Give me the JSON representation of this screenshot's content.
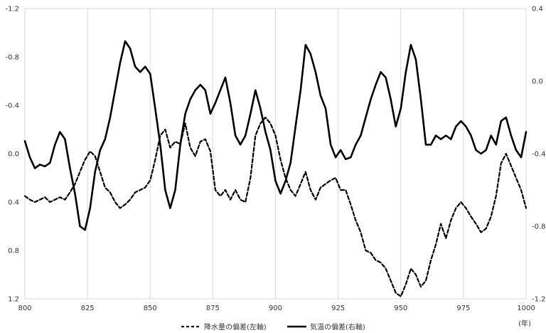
{
  "chart_data": {
    "type": "line",
    "x_unit_label": "(年)",
    "xlim": [
      800,
      1000
    ],
    "x_ticks": [
      "800",
      "825",
      "850",
      "875",
      "900",
      "925",
      "950",
      "975",
      "1000"
    ],
    "y_left": {
      "inverted": true,
      "ylim": [
        -1.2,
        1.2
      ],
      "ticks": [
        "-1.2",
        "-0.8",
        "-0.4",
        "0.0",
        "0.4",
        "0.8",
        "1.2"
      ]
    },
    "y_right": {
      "ylim": [
        -1.2,
        0.4
      ],
      "ticks": [
        "0.4",
        "0.0",
        "-0.4",
        "-0.8",
        "-1.2"
      ]
    },
    "grid": "vertical",
    "legend_position": "bottom",
    "series": [
      {
        "name": "降水量の偏差(左軸)",
        "axis": "left",
        "style": "dashed",
        "color": "#000000",
        "x": [
          800,
          802,
          804,
          806,
          808,
          810,
          812,
          814,
          816,
          818,
          820,
          822,
          824,
          826,
          828,
          830,
          832,
          834,
          836,
          838,
          840,
          842,
          844,
          846,
          848,
          850,
          852,
          854,
          856,
          858,
          860,
          862,
          864,
          866,
          868,
          870,
          872,
          874,
          876,
          878,
          880,
          882,
          884,
          886,
          888,
          890,
          892,
          894,
          896,
          898,
          900,
          902,
          904,
          906,
          908,
          910,
          912,
          914,
          916,
          918,
          920,
          922,
          924,
          926,
          928,
          930,
          932,
          934,
          936,
          938,
          940,
          942,
          944,
          946,
          948,
          950,
          952,
          954,
          956,
          958,
          960,
          962,
          964,
          966,
          968,
          970,
          972,
          974,
          976,
          978,
          980,
          982,
          984,
          986,
          988,
          990,
          992,
          994,
          996,
          998,
          1000
        ],
        "values": [
          0.35,
          0.38,
          0.4,
          0.38,
          0.36,
          0.4,
          0.38,
          0.36,
          0.38,
          0.32,
          0.25,
          0.15,
          0.05,
          -0.02,
          0.02,
          0.15,
          0.28,
          0.32,
          0.4,
          0.45,
          0.42,
          0.38,
          0.32,
          0.3,
          0.28,
          0.22,
          0.05,
          -0.15,
          -0.2,
          -0.05,
          -0.1,
          -0.08,
          -0.25,
          -0.05,
          0.02,
          -0.1,
          -0.12,
          -0.02,
          0.3,
          0.35,
          0.3,
          0.38,
          0.3,
          0.38,
          0.4,
          0.2,
          -0.15,
          -0.25,
          -0.3,
          -0.25,
          -0.15,
          0.05,
          0.2,
          0.3,
          0.35,
          0.25,
          0.15,
          0.3,
          0.38,
          0.28,
          0.25,
          0.22,
          0.2,
          0.3,
          0.3,
          0.42,
          0.55,
          0.65,
          0.8,
          0.82,
          0.88,
          0.9,
          0.95,
          1.05,
          1.15,
          1.18,
          1.08,
          0.95,
          1.0,
          1.1,
          1.05,
          0.88,
          0.75,
          0.58,
          0.7,
          0.55,
          0.45,
          0.4,
          0.45,
          0.52,
          0.58,
          0.65,
          0.62,
          0.52,
          0.35,
          0.08,
          0.0,
          0.1,
          0.2,
          0.3,
          0.45
        ]
      },
      {
        "name": "気温の偏差(右軸)",
        "axis": "right",
        "style": "solid",
        "color": "#000000",
        "x": [
          800,
          802,
          804,
          806,
          808,
          810,
          812,
          814,
          816,
          818,
          820,
          822,
          824,
          826,
          828,
          830,
          832,
          834,
          836,
          838,
          840,
          842,
          844,
          846,
          848,
          850,
          852,
          854,
          856,
          858,
          860,
          862,
          864,
          866,
          868,
          870,
          872,
          874,
          876,
          878,
          880,
          882,
          884,
          886,
          888,
          890,
          892,
          894,
          896,
          898,
          900,
          902,
          904,
          906,
          908,
          910,
          912,
          914,
          916,
          918,
          920,
          922,
          924,
          926,
          928,
          930,
          932,
          934,
          936,
          938,
          940,
          942,
          944,
          946,
          948,
          950,
          952,
          954,
          956,
          958,
          960,
          962,
          964,
          966,
          968,
          970,
          972,
          974,
          976,
          978,
          980,
          982,
          984,
          986,
          988,
          990,
          992,
          994,
          996,
          998,
          1000
        ],
        "values": [
          -0.33,
          -0.42,
          -0.48,
          -0.46,
          -0.47,
          -0.45,
          -0.35,
          -0.28,
          -0.32,
          -0.48,
          -0.62,
          -0.8,
          -0.82,
          -0.7,
          -0.5,
          -0.38,
          -0.32,
          -0.2,
          -0.05,
          0.1,
          0.22,
          0.18,
          0.08,
          0.05,
          0.08,
          0.04,
          -0.15,
          -0.35,
          -0.6,
          -0.7,
          -0.6,
          -0.35,
          -0.18,
          -0.1,
          -0.05,
          -0.02,
          -0.05,
          -0.18,
          -0.12,
          -0.05,
          0.02,
          -0.12,
          -0.3,
          -0.35,
          -0.3,
          -0.18,
          -0.05,
          -0.15,
          -0.28,
          -0.38,
          -0.55,
          -0.62,
          -0.55,
          -0.45,
          -0.25,
          -0.05,
          0.2,
          0.15,
          0.05,
          -0.08,
          -0.15,
          -0.35,
          -0.42,
          -0.38,
          -0.43,
          -0.42,
          -0.35,
          -0.3,
          -0.2,
          -0.1,
          -0.02,
          0.05,
          0.02,
          -0.1,
          -0.25,
          -0.15,
          0.05,
          0.2,
          0.12,
          -0.1,
          -0.35,
          -0.35,
          -0.3,
          -0.32,
          -0.3,
          -0.32,
          -0.25,
          -0.22,
          -0.25,
          -0.3,
          -0.38,
          -0.4,
          -0.38,
          -0.3,
          -0.35,
          -0.22,
          -0.2,
          -0.3,
          -0.38,
          -0.42,
          -0.28
        ]
      }
    ]
  }
}
